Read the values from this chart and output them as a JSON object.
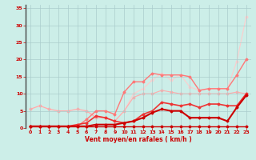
{
  "background_color": "#cceee8",
  "grid_color": "#aacccc",
  "xlabel": "Vent moyen/en rafales ( km/h )",
  "xlabel_color": "#cc0000",
  "ylabel_color": "#cc0000",
  "tick_color": "#cc0000",
  "xlim": [
    -0.5,
    23.5
  ],
  "ylim": [
    0,
    36
  ],
  "xticks": [
    0,
    1,
    2,
    3,
    4,
    5,
    6,
    7,
    8,
    9,
    10,
    11,
    12,
    13,
    14,
    15,
    16,
    17,
    18,
    19,
    20,
    21,
    22,
    23
  ],
  "yticks": [
    0,
    5,
    10,
    15,
    20,
    25,
    30,
    35
  ],
  "series": [
    {
      "x": [
        0,
        1,
        2,
        3,
        4,
        5,
        6,
        7,
        8,
        9,
        10,
        11,
        12,
        13,
        14,
        15,
        16,
        17,
        18,
        19,
        20,
        21,
        22,
        23
      ],
      "y": [
        0.5,
        0.5,
        0.5,
        0.5,
        0.5,
        0.5,
        0.5,
        0.5,
        0.5,
        0.5,
        0.5,
        0.5,
        0.5,
        0.5,
        0.5,
        0.5,
        0.5,
        0.5,
        0.5,
        0.5,
        0.5,
        0.5,
        0.5,
        0.5
      ],
      "color": "#cc0000",
      "linewidth": 1.0,
      "marker": "D",
      "markersize": 1.5,
      "zorder": 5
    },
    {
      "x": [
        0,
        1,
        2,
        3,
        4,
        5,
        6,
        7,
        8,
        9,
        10,
        11,
        12,
        13,
        14,
        15,
        16,
        17,
        18,
        19,
        20,
        21,
        22,
        23
      ],
      "y": [
        0.5,
        0.5,
        0.5,
        0.5,
        0.5,
        0.5,
        0.5,
        1.0,
        1.0,
        1.0,
        1.5,
        2.0,
        3.0,
        4.5,
        5.5,
        5.0,
        5.0,
        3.0,
        3.0,
        3.0,
        3.0,
        2.0,
        6.0,
        9.5
      ],
      "color": "#cc0000",
      "linewidth": 1.5,
      "marker": "D",
      "markersize": 1.5,
      "zorder": 4
    },
    {
      "x": [
        0,
        1,
        2,
        3,
        4,
        5,
        6,
        7,
        8,
        9,
        10,
        11,
        12,
        13,
        14,
        15,
        16,
        17,
        18,
        19,
        20,
        21,
        22,
        23
      ],
      "y": [
        0.5,
        0.5,
        0.5,
        0.5,
        0.5,
        1.0,
        1.5,
        3.5,
        3.0,
        2.0,
        1.5,
        2.0,
        4.0,
        5.0,
        7.5,
        7.0,
        6.5,
        7.0,
        6.0,
        7.0,
        7.0,
        6.5,
        6.5,
        10.0
      ],
      "color": "#ee3333",
      "linewidth": 1.2,
      "marker": "D",
      "markersize": 1.5,
      "zorder": 3
    },
    {
      "x": [
        0,
        1,
        2,
        3,
        4,
        5,
        6,
        7,
        8,
        9,
        10,
        11,
        12,
        13,
        14,
        15,
        16,
        17,
        18,
        19,
        20,
        21,
        22,
        23
      ],
      "y": [
        0.5,
        0.5,
        0.5,
        0.5,
        0.5,
        0.5,
        2.5,
        5.0,
        5.0,
        4.0,
        10.5,
        13.5,
        13.5,
        16.0,
        15.5,
        15.5,
        15.5,
        15.0,
        11.0,
        11.5,
        11.5,
        11.5,
        15.5,
        20.0
      ],
      "color": "#ff7777",
      "linewidth": 1.0,
      "marker": "D",
      "markersize": 1.5,
      "zorder": 2
    },
    {
      "x": [
        0,
        1,
        2,
        3,
        4,
        5,
        6,
        7,
        8,
        9,
        10,
        11,
        12,
        13,
        14,
        15,
        16,
        17,
        18,
        19,
        20,
        21,
        22,
        23
      ],
      "y": [
        5.5,
        6.5,
        5.5,
        5.0,
        5.0,
        5.5,
        5.0,
        3.0,
        3.0,
        2.0,
        5.0,
        9.0,
        10.0,
        10.0,
        11.0,
        10.5,
        10.0,
        10.0,
        10.0,
        10.0,
        10.0,
        10.0,
        10.5,
        10.0
      ],
      "color": "#ffaaaa",
      "linewidth": 0.8,
      "marker": "D",
      "markersize": 1.5,
      "zorder": 1
    },
    {
      "x": [
        0,
        1,
        2,
        3,
        4,
        5,
        6,
        7,
        8,
        9,
        10,
        11,
        12,
        13,
        14,
        15,
        16,
        17,
        18,
        19,
        20,
        21,
        22,
        23
      ],
      "y": [
        5.5,
        6.5,
        5.5,
        5.0,
        5.0,
        5.5,
        5.0,
        3.5,
        3.0,
        2.0,
        5.0,
        10.0,
        11.5,
        14.0,
        16.0,
        14.0,
        15.5,
        12.0,
        11.0,
        11.5,
        11.5,
        11.5,
        19.5,
        32.5
      ],
      "color": "#ffcccc",
      "linewidth": 0.8,
      "marker": "D",
      "markersize": 1.5,
      "zorder": 0
    }
  ]
}
